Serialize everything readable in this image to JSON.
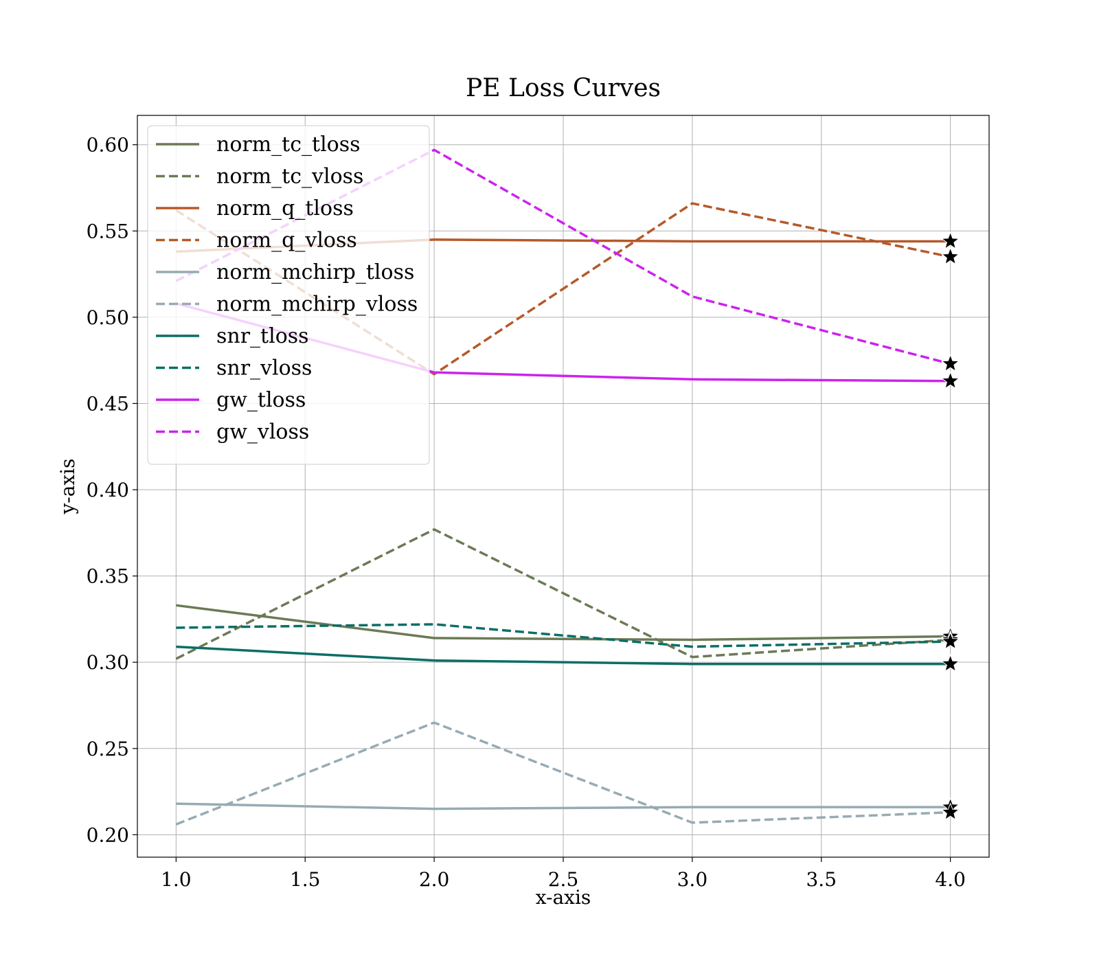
{
  "chart_data": {
    "type": "line",
    "title": "PE Loss Curves",
    "xlabel": "x-axis",
    "ylabel": "y-axis",
    "xlim": [
      0.85,
      4.15
    ],
    "ylim": [
      0.187,
      0.617
    ],
    "xticks": [
      1.0,
      1.5,
      2.0,
      2.5,
      3.0,
      3.5,
      4.0
    ],
    "xtick_labels": [
      "1.0",
      "1.5",
      "2.0",
      "2.5",
      "3.0",
      "3.5",
      "4.0"
    ],
    "yticks": [
      0.2,
      0.25,
      0.3,
      0.35,
      0.4,
      0.45,
      0.5,
      0.55,
      0.6
    ],
    "ytick_labels": [
      "0.20",
      "0.25",
      "0.30",
      "0.35",
      "0.40",
      "0.45",
      "0.50",
      "0.55",
      "0.60"
    ],
    "grid": true,
    "legend_position": "upper-left",
    "x": [
      1,
      2,
      3,
      4
    ],
    "final_marker": "star",
    "series": [
      {
        "name": "norm_tc_tloss",
        "style": "solid",
        "color": "#6b7a55",
        "values": [
          0.333,
          0.314,
          0.313,
          0.315
        ]
      },
      {
        "name": "norm_tc_vloss",
        "style": "dashed",
        "color": "#6b7a55",
        "values": [
          0.302,
          0.377,
          0.303,
          0.313
        ]
      },
      {
        "name": "norm_q_tloss",
        "style": "solid",
        "color": "#b5592a",
        "values": [
          0.538,
          0.545,
          0.544,
          0.544
        ]
      },
      {
        "name": "norm_q_vloss",
        "style": "dashed",
        "color": "#b5592a",
        "values": [
          0.562,
          0.467,
          0.566,
          0.535
        ]
      },
      {
        "name": "norm_mchirp_tloss",
        "style": "solid",
        "color": "#96abb3",
        "values": [
          0.218,
          0.215,
          0.216,
          0.216
        ]
      },
      {
        "name": "norm_mchirp_vloss",
        "style": "dashed",
        "color": "#96abb3",
        "values": [
          0.206,
          0.265,
          0.207,
          0.213
        ]
      },
      {
        "name": "snr_tloss",
        "style": "solid",
        "color": "#0b6e66",
        "values": [
          0.309,
          0.301,
          0.299,
          0.299
        ]
      },
      {
        "name": "snr_vloss",
        "style": "dashed",
        "color": "#0b6e66",
        "values": [
          0.32,
          0.322,
          0.309,
          0.312
        ]
      },
      {
        "name": "gw_tloss",
        "style": "solid",
        "color": "#cc22ee",
        "values": [
          0.508,
          0.468,
          0.464,
          0.463
        ]
      },
      {
        "name": "gw_vloss",
        "style": "dashed",
        "color": "#cc22ee",
        "values": [
          0.521,
          0.597,
          0.512,
          0.473
        ]
      }
    ]
  }
}
